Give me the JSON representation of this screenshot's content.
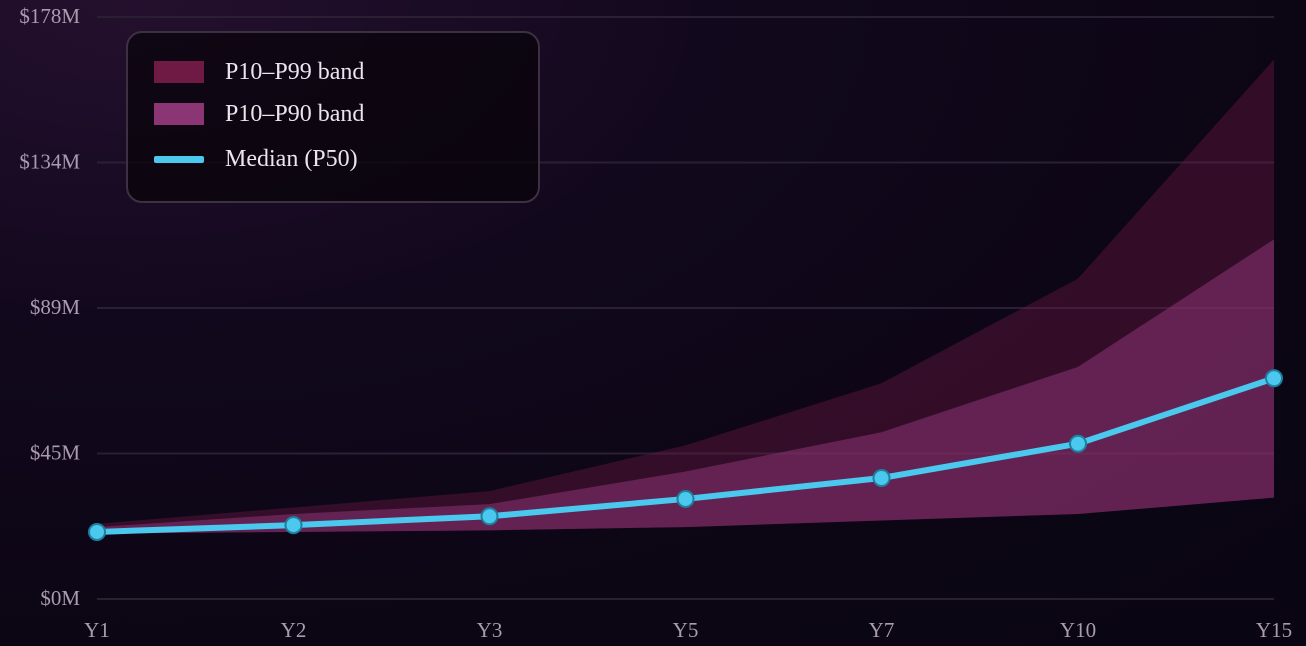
{
  "chart_data": {
    "type": "area",
    "categories": [
      "Y1",
      "Y2",
      "Y3",
      "Y5",
      "Y7",
      "Y10",
      "Y15"
    ],
    "y_ticks": [
      "$178M",
      "$134M",
      "$89M",
      "$45M",
      "$0M"
    ],
    "ylim": [
      0,
      178
    ],
    "grid": true,
    "legend_position": "top-left",
    "series": [
      {
        "name": "P10–P99 band",
        "type": "band",
        "color": "#6e1a45",
        "lower": [
          20,
          20.5,
          21,
          22,
          24,
          26,
          31
        ],
        "upper": [
          23,
          28,
          33,
          47,
          66,
          98,
          165
        ]
      },
      {
        "name": "P10–P90 band",
        "type": "band",
        "color": "#8b3574",
        "lower": [
          20,
          20.5,
          21,
          22,
          24,
          26,
          31
        ],
        "upper": [
          22,
          26,
          29,
          39,
          51,
          71,
          110
        ]
      },
      {
        "name": "Median (P50)",
        "type": "line",
        "color": "#4ac8ee",
        "values": [
          20.5,
          22.6,
          25.3,
          30.6,
          37,
          47.5,
          67.5
        ]
      }
    ]
  }
}
